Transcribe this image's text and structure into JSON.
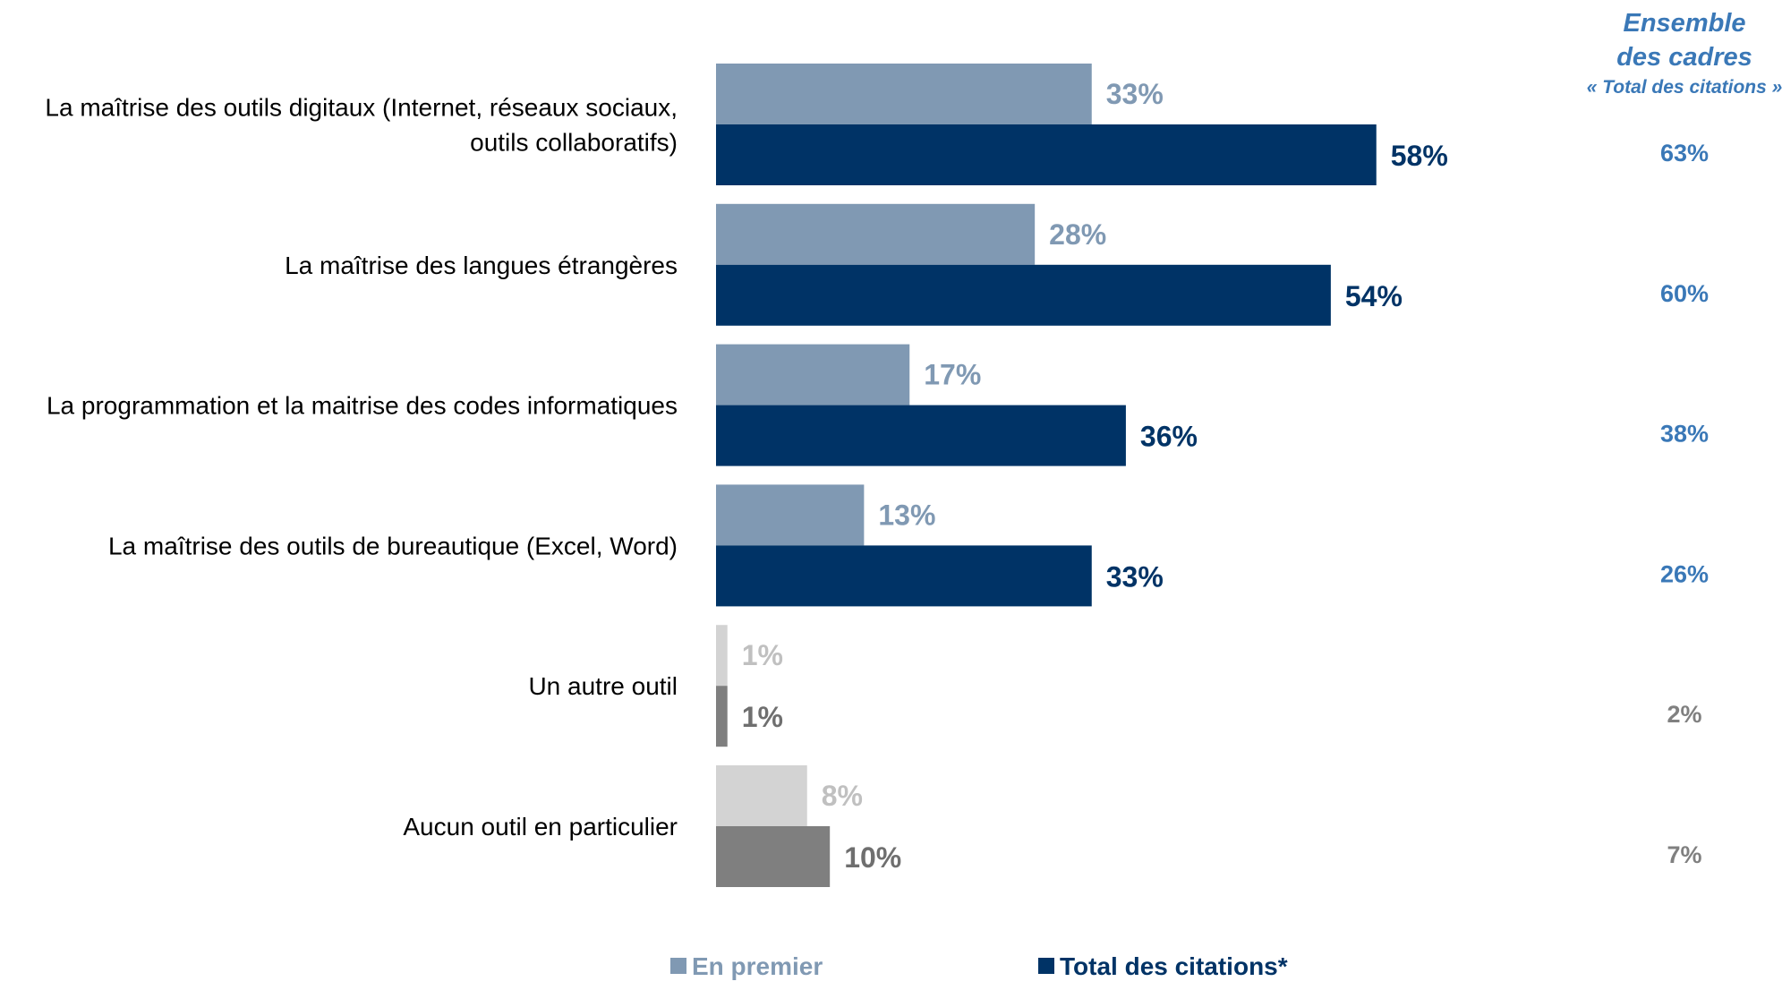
{
  "chart_data": {
    "type": "bar",
    "orientation": "horizontal",
    "xlim": [
      0,
      100
    ],
    "categories": [
      [
        "La maîtrise des outils digitaux (Internet, réseaux sociaux,",
        "outils collaboratifs)"
      ],
      [
        "La maîtrise des langues étrangères"
      ],
      [
        "La programmation et la maitrise des codes informatiques"
      ],
      [
        "La maîtrise des outils de bureautique (Excel, Word)"
      ],
      [
        "Un autre outil"
      ],
      [
        "Aucun outil en particulier"
      ]
    ],
    "series": [
      {
        "name": "En premier",
        "values": [
          33,
          28,
          17,
          13,
          1,
          8
        ],
        "labels": [
          "33%",
          "28%",
          "17%",
          "13%",
          "1%",
          "8%"
        ]
      },
      {
        "name": "Total des citations*",
        "values": [
          58,
          54,
          36,
          33,
          1,
          10
        ],
        "labels": [
          "58%",
          "54%",
          "36%",
          "33%",
          "1%",
          "10%"
        ]
      }
    ],
    "side_column": {
      "title_lines": [
        "Ensemble",
        "des cadres"
      ],
      "subtitle": "« Total des citations »",
      "values": [
        "63%",
        "60%",
        "38%",
        "26%",
        "2%",
        "7%"
      ]
    },
    "legend": {
      "position": "bottom",
      "items": [
        "En premier",
        "Total des citations*"
      ]
    },
    "grid": false,
    "colors": {
      "first": "#8099b3",
      "total": "#003366",
      "first_muted": "#d3d3d3",
      "total_muted": "#7f7f7f",
      "first_muted_label": "#c0c0c0",
      "total_muted_label": "#6f6f6f",
      "side_value": "#3a78b7",
      "side_value_muted": "#808080",
      "legend_first": "#8099b3",
      "legend_total": "#003366"
    },
    "muted_rows": [
      4,
      5
    ]
  }
}
